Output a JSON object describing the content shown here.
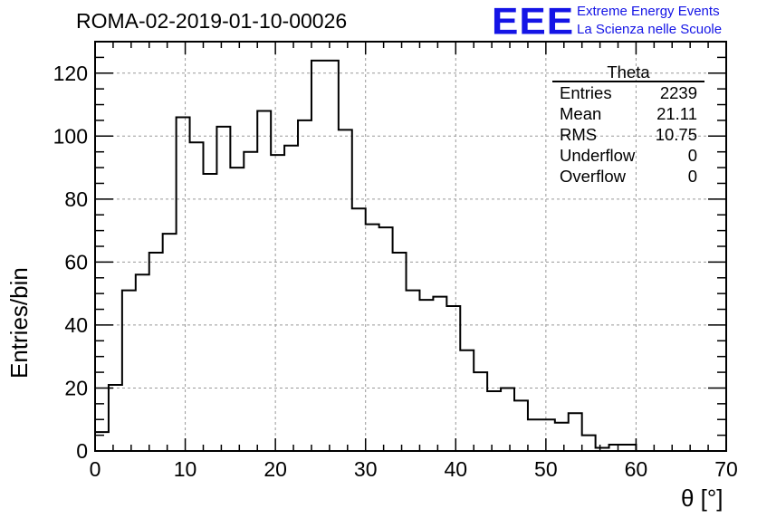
{
  "title": "ROMA-02-2019-01-10-00026",
  "logo": {
    "mark": "EEE",
    "line1": "Extreme Energy Events",
    "line2": "La Scienza nelle Scuole",
    "color": "#1414e6"
  },
  "stats_box": {
    "name": "Theta",
    "rows": [
      {
        "label": "Entries",
        "value": "2239"
      },
      {
        "label": "Mean",
        "value": "21.11"
      },
      {
        "label": "RMS",
        "value": "10.75"
      },
      {
        "label": "Underflow",
        "value": "0"
      },
      {
        "label": "Overflow",
        "value": "0"
      }
    ]
  },
  "chart_data": {
    "type": "histogram",
    "title": "ROMA-02-2019-01-10-00026",
    "xlabel": "θ [°]",
    "ylabel": "Entries/bin",
    "xlim": [
      0,
      70
    ],
    "ylim": [
      0,
      130
    ],
    "xticks": [
      0,
      10,
      20,
      30,
      40,
      50,
      60,
      70
    ],
    "yticks": [
      0,
      20,
      40,
      60,
      80,
      100,
      120
    ],
    "grid": true,
    "bin_width": 1.5,
    "bin_start": 0,
    "values": [
      6,
      21,
      51,
      56,
      63,
      69,
      106,
      98,
      88,
      103,
      90,
      95,
      108,
      94,
      97,
      105,
      124,
      124,
      102,
      77,
      72,
      71,
      63,
      51,
      48,
      49,
      46,
      32,
      25,
      19,
      20,
      16,
      10,
      10,
      9,
      12,
      5,
      1,
      2,
      2
    ]
  }
}
